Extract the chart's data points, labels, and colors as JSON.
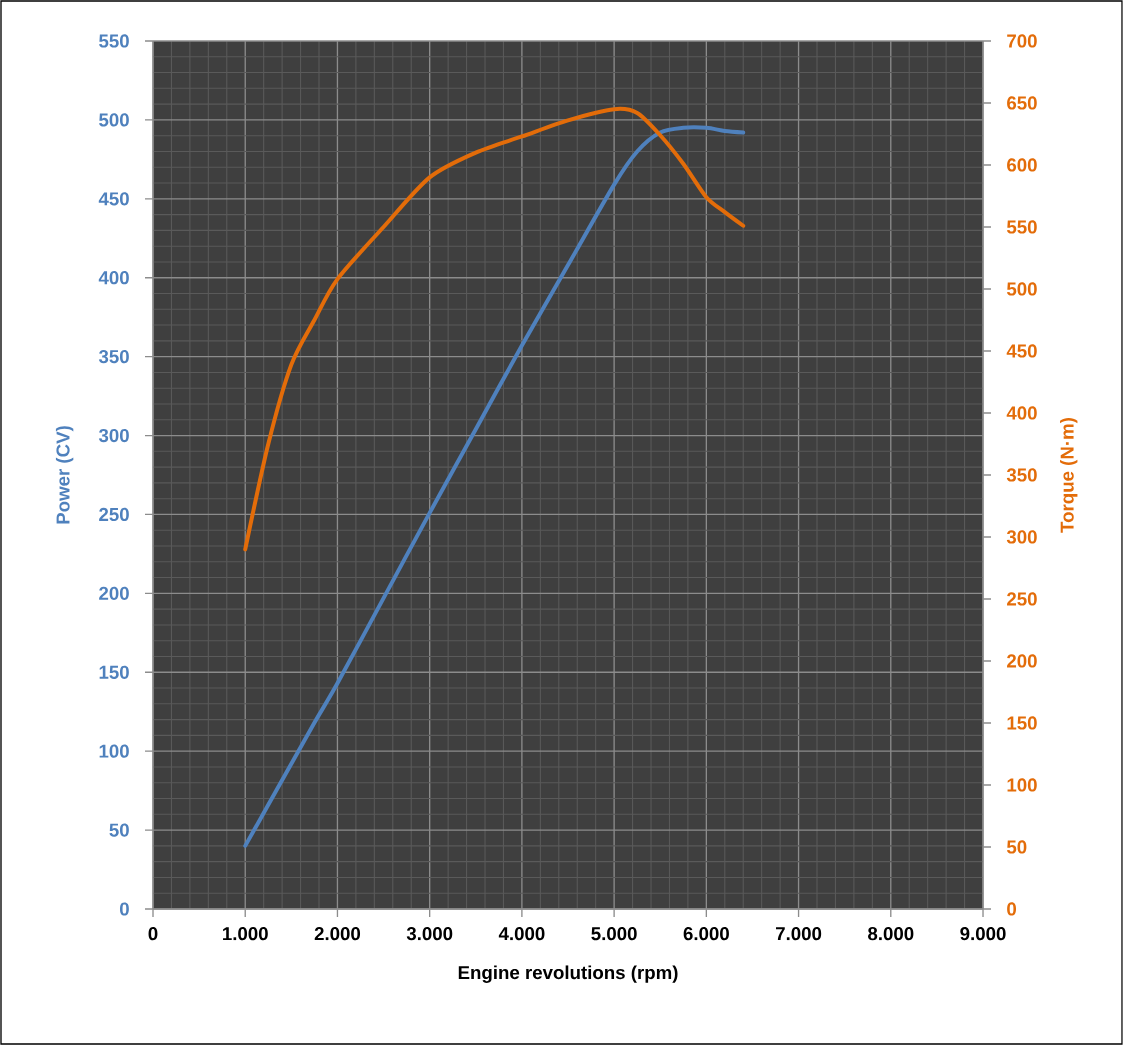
{
  "chart_data": {
    "type": "line",
    "xlabel": "Engine revolutions (rpm)",
    "ylabel": "Power (CV)",
    "y2label": "Torque (N·m)",
    "x": [
      1000,
      1250,
      1500,
      1750,
      2000,
      2500,
      3000,
      3500,
      4000,
      4500,
      5000,
      5250,
      5500,
      5750,
      6000,
      6200,
      6400
    ],
    "series": [
      {
        "color": "#4f81bd",
        "values": [
          40,
          66,
          92,
          118,
          143,
          197,
          251,
          304,
          357,
          408,
          459,
          480,
          492,
          495,
          495,
          493,
          492
        ]
      },
      {
        "color": "#e36c09",
        "axis": "y2",
        "values": [
          290,
          375,
          439,
          475,
          508,
          550,
          590,
          610,
          623,
          636,
          645,
          642,
          624,
          601,
          574,
          562,
          551
        ]
      }
    ],
    "xlim": [
      0,
      9000
    ],
    "xticks": [
      0,
      {
        "value": 1000,
        "label": "1.000"
      },
      {
        "value": 2000,
        "label": "2.000"
      },
      {
        "value": 3000,
        "label": "3.000"
      },
      {
        "value": 4000,
        "label": "4.000"
      },
      {
        "value": 5000,
        "label": "5.000"
      },
      {
        "value": 6000,
        "label": "6.000"
      },
      {
        "value": 7000,
        "label": "7.000"
      },
      {
        "value": 8000,
        "label": "8.000"
      },
      {
        "value": 9000,
        "label": "9.000"
      }
    ],
    "ylim": [
      0,
      550
    ],
    "yticks": [
      0,
      50,
      100,
      150,
      200,
      250,
      300,
      350,
      400,
      450,
      500,
      550
    ],
    "y2lim": [
      0,
      700
    ],
    "y2ticks": [
      0,
      50,
      100,
      150,
      200,
      250,
      300,
      350,
      400,
      450,
      500,
      550,
      600,
      650,
      700
    ],
    "grid": true
  }
}
